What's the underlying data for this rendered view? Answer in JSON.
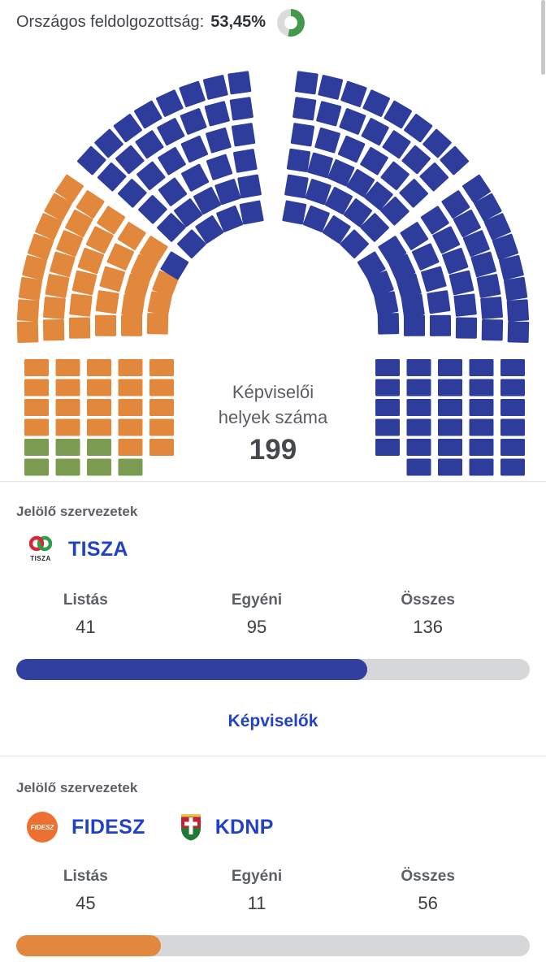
{
  "header": {
    "label": "Országos feldolgozottság:",
    "value": "53,45%",
    "progress_percent": 53.45,
    "progress_color": "#44994b",
    "progress_track_color": "#dadbdc"
  },
  "parliament": {
    "center_label_line1": "Képviselői",
    "center_label_line2": "helyek száma",
    "total_seats": "199",
    "colors": {
      "tisza_blue": "#2e3d9b",
      "fidesz_orange": "#e2883c",
      "green": "#7b9b51"
    },
    "seat_counts": {
      "green_party": 7,
      "fidesz_kdnp": 56,
      "tisza": 136
    }
  },
  "chart_data": {
    "type": "parliament-seats",
    "title": "Képviselői helyek száma",
    "total": 199,
    "series": [
      {
        "name": "TISZA",
        "values": [
          136
        ],
        "color": "#2e3d9b"
      },
      {
        "name": "FIDESZ-KDNP",
        "values": [
          56
        ],
        "color": "#e2883c"
      },
      {
        "name": "green-seats",
        "values": [
          7
        ],
        "color": "#7b9b51"
      }
    ]
  },
  "cards": [
    {
      "section_label": "Jelölő szervezetek",
      "parties": [
        {
          "name": "TISZA",
          "logo_text": "TISZA"
        }
      ],
      "stats": [
        {
          "label": "Listás",
          "value": "41"
        },
        {
          "label": "Egyéni",
          "value": "95"
        },
        {
          "label": "Összes",
          "value": "136"
        }
      ],
      "progress": {
        "value": 136,
        "max": 199,
        "color": "#31409f"
      },
      "link_label": "Képviselők"
    },
    {
      "section_label": "Jelölő szervezetek",
      "parties": [
        {
          "name": "FIDESZ",
          "logo_text": "FIDESZ"
        },
        {
          "name": "KDNP"
        }
      ],
      "stats": [
        {
          "label": "Listás",
          "value": "45"
        },
        {
          "label": "Egyéni",
          "value": "11"
        },
        {
          "label": "Összes",
          "value": "56"
        }
      ],
      "progress": {
        "value": 56,
        "max": 199,
        "color": "#e2883c"
      }
    }
  ]
}
